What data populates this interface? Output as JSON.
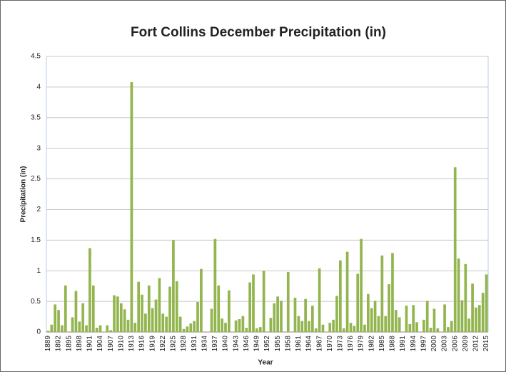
{
  "chart_data": {
    "type": "bar",
    "title": "Fort Collins December Precipitation (in)",
    "x_label": "Year",
    "y_label": "Precipitation (in)",
    "categories": [
      "1889",
      null,
      null,
      "1892",
      null,
      null,
      "1895",
      null,
      null,
      "1898",
      null,
      null,
      "1901",
      null,
      null,
      "1904",
      null,
      null,
      "1907",
      null,
      null,
      "1910",
      null,
      null,
      "1913",
      null,
      null,
      "1916",
      null,
      null,
      "1919",
      null,
      null,
      "1922",
      null,
      null,
      "1925",
      null,
      null,
      "1928",
      null,
      null,
      "1931",
      null,
      null,
      "1934",
      null,
      null,
      "1937",
      null,
      null,
      "1940",
      null,
      null,
      "1943",
      null,
      null,
      "1946",
      null,
      null,
      "1949",
      null,
      null,
      "1952",
      null,
      null,
      "1955",
      null,
      null,
      "1958",
      null,
      null,
      "1961",
      null,
      null,
      "1964",
      null,
      null,
      "1967",
      null,
      null,
      "1970",
      null,
      null,
      "1973",
      null,
      null,
      "1976",
      null,
      null,
      "1979",
      null,
      null,
      "1982",
      null,
      null,
      "1985",
      null,
      null,
      "1988",
      null,
      null,
      "1991",
      null,
      null,
      "1994",
      null,
      null,
      "1997",
      null,
      null,
      "2000",
      null,
      null,
      "2003",
      null,
      null,
      "2006",
      null,
      null,
      "2009",
      null,
      null,
      "2012",
      null,
      null,
      "2015"
    ],
    "values": [
      0.02,
      0.12,
      0.45,
      0.36,
      0.11,
      0.76,
      0,
      0.24,
      0.67,
      0.17,
      0.47,
      0.11,
      1.37,
      0.76,
      0.07,
      0.11,
      0,
      0.11,
      0.03,
      0.6,
      0.58,
      0.47,
      0.37,
      0.2,
      4.08,
      0.15,
      0.82,
      0.61,
      0.3,
      0.76,
      0.39,
      0.53,
      0.88,
      0.3,
      0.25,
      0.74,
      1.5,
      0.83,
      0.25,
      0.05,
      0.09,
      0.14,
      0.18,
      0.49,
      1.03,
      0,
      0,
      0.38,
      1.52,
      0.76,
      0.22,
      0.15,
      0.68,
      0,
      0.19,
      0.21,
      0.26,
      0.07,
      0.81,
      0.94,
      0.06,
      0.08,
      1.0,
      0,
      0.23,
      0.47,
      0.58,
      0.51,
      0,
      0.98,
      0,
      0.56,
      0.26,
      0.18,
      0.54,
      0.18,
      0.43,
      0.06,
      1.04,
      0.12,
      0,
      0.15,
      0.2,
      0.59,
      1.17,
      0.06,
      1.31,
      0.15,
      0.1,
      0.95,
      1.52,
      0.12,
      0.62,
      0.39,
      0.51,
      0.26,
      1.25,
      0.26,
      0.78,
      1.29,
      0.36,
      0.24,
      0,
      0.43,
      0.13,
      0.44,
      0.16,
      0,
      0.2,
      0.51,
      0.07,
      0.38,
      0.06,
      0,
      0.45,
      0.08,
      0.18,
      2.69,
      1.2,
      0.52,
      1.11,
      0.22,
      0.79,
      0.4,
      0.44,
      0.64,
      0.94
    ],
    "color": "#93b54f",
    "ylim": [
      0,
      4.5
    ],
    "yticks": [
      0,
      0.5,
      1,
      1.5,
      2,
      2.5,
      3,
      3.5,
      4,
      4.5
    ],
    "grid": true
  }
}
